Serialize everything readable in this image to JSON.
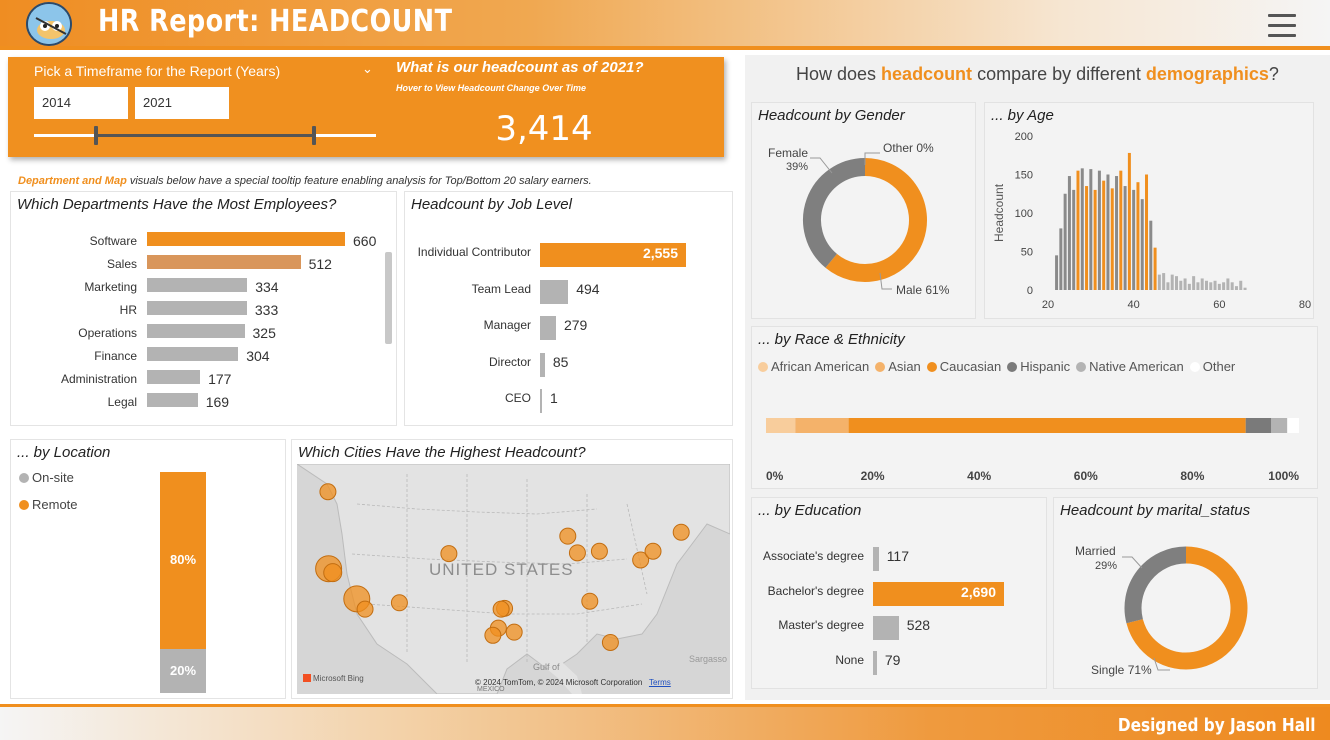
{
  "header": {
    "title": "HR Report: HEADCOUNT"
  },
  "footer": {
    "credit": "Designed by Jason Hall"
  },
  "timeframe": {
    "label": "Pick a Timeframe for the Report (Years)",
    "start": "2014",
    "end": "2021",
    "slider_start_fraction": 0.18,
    "slider_end_fraction": 0.82
  },
  "kpi": {
    "question": "What is our headcount as of 2021?",
    "hint": "Hover to View Headcount Change Over Time",
    "value": "3,414"
  },
  "tooltip_note": {
    "highlight": "Department and Map",
    "rest": " visuals below have a special tooltip feature enabling analysis for Top/Bottom 20 salary earners."
  },
  "right_heading": {
    "part1": "How does ",
    "hl1": "headcount",
    "part2": " compare by different ",
    "hl2": "demographics",
    "part3": "?"
  },
  "colors": {
    "orange": "#f08f1e",
    "tan": "#d9965b",
    "gray": "#b3b3b3",
    "darkgray": "#808080"
  },
  "chart_data": [
    {
      "type": "bar",
      "title": "Which Departments Have the Most Employees?",
      "categories": [
        "Software",
        "Sales",
        "Marketing",
        "HR",
        "Operations",
        "Finance",
        "Administration",
        "Legal"
      ],
      "values": [
        660,
        512,
        334,
        333,
        325,
        304,
        177,
        169
      ],
      "labels": [
        "660",
        "512",
        "334",
        "333",
        "325",
        "304",
        "177",
        "169"
      ]
    },
    {
      "type": "bar",
      "title": "Headcount by Job Level",
      "categories": [
        "Individual Contributor",
        "Team Lead",
        "Manager",
        "Director",
        "CEO"
      ],
      "values": [
        2555,
        494,
        279,
        85,
        1
      ],
      "labels": [
        "2,555",
        "494",
        "279",
        "85",
        "1"
      ]
    },
    {
      "type": "pie",
      "title": "Headcount by Gender",
      "slices": [
        {
          "name": "Male",
          "pct": 61,
          "label": "Male 61%"
        },
        {
          "name": "Female",
          "pct": 39,
          "label": "Female",
          "pct_label": "39%"
        },
        {
          "name": "Other",
          "pct": 0,
          "label": "Other 0%"
        }
      ]
    },
    {
      "type": "bar",
      "title": "... by Age",
      "ylabel": "Headcount",
      "xticks": [
        "20",
        "40",
        "60",
        "80"
      ],
      "yticks": [
        "0",
        "50",
        "100",
        "150",
        "200"
      ],
      "xlim": [
        20,
        80
      ],
      "ylim": [
        0,
        200
      ],
      "x": [
        22,
        23,
        24,
        25,
        26,
        27,
        28,
        29,
        30,
        31,
        32,
        33,
        34,
        35,
        36,
        37,
        38,
        39,
        40,
        41,
        42,
        43,
        44,
        45,
        46,
        47,
        48,
        49,
        50,
        51,
        52,
        53,
        54,
        55,
        56,
        57,
        58,
        59,
        60,
        61,
        62,
        63,
        64,
        65,
        66
      ],
      "values": [
        45,
        80,
        125,
        148,
        130,
        155,
        158,
        135,
        157,
        130,
        155,
        142,
        150,
        132,
        148,
        155,
        135,
        178,
        130,
        140,
        118,
        150,
        90,
        55,
        20,
        22,
        10,
        20,
        18,
        12,
        15,
        8,
        18,
        10,
        15,
        12,
        10,
        12,
        8,
        10,
        15,
        10,
        5,
        12,
        3
      ]
    },
    {
      "type": "bar",
      "title": "... by Race & Ethnicity",
      "legend": [
        "African American",
        "Asian",
        "Caucasian",
        "Hispanic",
        "Native American",
        "Other"
      ],
      "values_pct": [
        5.5,
        10,
        74.5,
        4.8,
        3,
        2.2
      ],
      "xticks": [
        "0%",
        "20%",
        "40%",
        "60%",
        "80%",
        "100%"
      ]
    },
    {
      "type": "bar",
      "title": "... by Location",
      "legend": [
        "On-site",
        "Remote"
      ],
      "values_pct": [
        20,
        80
      ],
      "labels": [
        "20%",
        "80%"
      ]
    },
    {
      "type": "bar",
      "title": "... by Education",
      "categories": [
        "Associate's degree",
        "Bachelor's degree",
        "Master's degree",
        "None"
      ],
      "values": [
        117,
        2690,
        528,
        79
      ],
      "labels": [
        "117",
        "2,690",
        "528",
        "79"
      ]
    },
    {
      "type": "pie",
      "title": "Headcount by marital_status",
      "slices": [
        {
          "name": "Single",
          "pct": 71,
          "label": "Single 71%"
        },
        {
          "name": "Married",
          "pct": 29,
          "label": "Married",
          "pct_label": "29%"
        }
      ]
    }
  ],
  "map": {
    "title": "Which Cities Have the Highest Headcount?",
    "country_label": "UNITED STATES",
    "gulf_label": "Gulf of",
    "mexico_label": "MEXICO",
    "sargasso_label": "Sargasso",
    "bing_label": "Microsoft Bing",
    "copyright": "© 2024 TomTom, © 2024 Microsoft Corporation",
    "terms": "Terms",
    "cities": [
      {
        "lon": -122.5,
        "lat": 47.5,
        "size": 1
      },
      {
        "lon": -122.4,
        "lat": 37.8,
        "size": 3
      },
      {
        "lon": -121.8,
        "lat": 37.3,
        "size": 2
      },
      {
        "lon": -118.3,
        "lat": 34.0,
        "size": 3
      },
      {
        "lon": -117.1,
        "lat": 32.7,
        "size": 1
      },
      {
        "lon": -112.1,
        "lat": 33.5,
        "size": 1
      },
      {
        "lon": -104.9,
        "lat": 39.7,
        "size": 1
      },
      {
        "lon": -97.7,
        "lat": 30.3,
        "size": 1
      },
      {
        "lon": -96.8,
        "lat": 32.8,
        "size": 1
      },
      {
        "lon": -97.3,
        "lat": 32.7,
        "size": 1
      },
      {
        "lon": -95.4,
        "lat": 29.8,
        "size": 1
      },
      {
        "lon": -98.5,
        "lat": 29.4,
        "size": 1
      },
      {
        "lon": -87.6,
        "lat": 41.9,
        "size": 1
      },
      {
        "lon": -86.2,
        "lat": 39.8,
        "size": 1
      },
      {
        "lon": -83.0,
        "lat": 40.0,
        "size": 1
      },
      {
        "lon": -84.4,
        "lat": 33.7,
        "size": 1
      },
      {
        "lon": -81.4,
        "lat": 28.5,
        "size": 1
      },
      {
        "lon": -77.0,
        "lat": 38.9,
        "size": 1
      },
      {
        "lon": -75.2,
        "lat": 40.0,
        "size": 1
      },
      {
        "lon": -71.1,
        "lat": 42.4,
        "size": 1
      }
    ]
  }
}
